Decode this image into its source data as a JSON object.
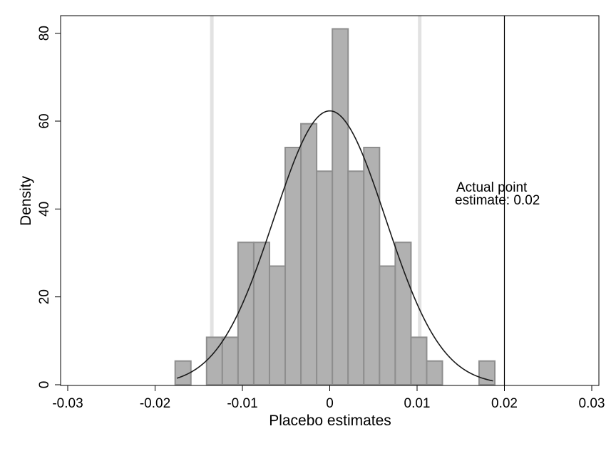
{
  "chart_data": {
    "type": "bar",
    "title": "",
    "xlabel": "Placebo estimates",
    "ylabel": "Density",
    "xlim": [
      -0.03,
      0.03
    ],
    "ylim": [
      0,
      84
    ],
    "xticks": [
      -0.03,
      -0.02,
      -0.01,
      0,
      0.01,
      0.02,
      0.03
    ],
    "xtick_labels": [
      "-0.03",
      "-0.02",
      "-0.01",
      "0",
      "0.01",
      "0.02",
      "0.03"
    ],
    "yticks": [
      0,
      20,
      40,
      60,
      80
    ],
    "ytick_labels": [
      "0",
      "20",
      "40",
      "60",
      "80"
    ],
    "grid": false,
    "bin_width": 0.0018,
    "bins": [
      {
        "x0": -0.0177,
        "x1": -0.0159,
        "density": 5.4
      },
      {
        "x0": -0.0141,
        "x1": -0.0123,
        "density": 10.8
      },
      {
        "x0": -0.0123,
        "x1": -0.0105,
        "density": 10.8
      },
      {
        "x0": -0.0105,
        "x1": -0.0087,
        "density": 32.4
      },
      {
        "x0": -0.0087,
        "x1": -0.0069,
        "density": 32.4
      },
      {
        "x0": -0.0069,
        "x1": -0.0051,
        "density": 27.0
      },
      {
        "x0": -0.0051,
        "x1": -0.0033,
        "density": 54.0
      },
      {
        "x0": -0.0033,
        "x1": -0.0015,
        "density": 59.4
      },
      {
        "x0": -0.0015,
        "x1": 0.0003,
        "density": 48.6
      },
      {
        "x0": 0.0003,
        "x1": 0.0021,
        "density": 81.0
      },
      {
        "x0": 0.0021,
        "x1": 0.0039,
        "density": 48.6
      },
      {
        "x0": 0.0039,
        "x1": 0.0057,
        "density": 54.0
      },
      {
        "x0": 0.0057,
        "x1": 0.0075,
        "density": 27.0
      },
      {
        "x0": 0.0075,
        "x1": 0.0093,
        "density": 32.4
      },
      {
        "x0": 0.0093,
        "x1": 0.0111,
        "density": 10.8
      },
      {
        "x0": 0.0111,
        "x1": 0.0129,
        "density": 5.4
      },
      {
        "x0": 0.0171,
        "x1": 0.0189,
        "density": 5.4
      }
    ],
    "normal_curve": {
      "mean": 0.0,
      "sd": 0.0064,
      "x_range": [
        -0.0175,
        0.0187
      ]
    },
    "reference_lines": {
      "gray_bands": [
        -0.0135,
        0.0103
      ],
      "actual_estimate": 0.02
    },
    "annotation": {
      "line1": "Actual point",
      "line2": "estimate: 0.02"
    },
    "colors": {
      "bar_fill": "#b1b1b1",
      "bar_stroke": "#8e8e8e",
      "curve": "#1a1a1a",
      "gray_band": "#e2e2e2",
      "actual_line": "#000000"
    }
  }
}
